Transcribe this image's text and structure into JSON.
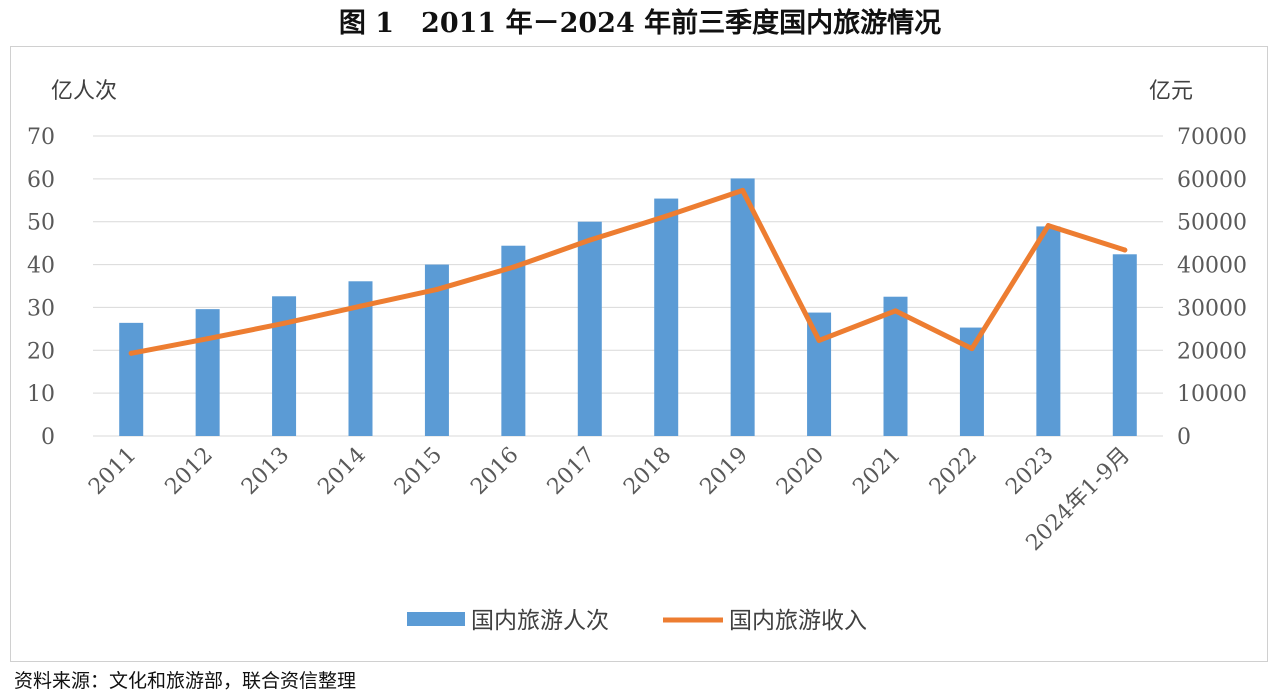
{
  "title": "图 1　2011 年－2024 年前三季度国内旅游情况",
  "source_note": "资料来源：文化和旅游部，联合资信整理",
  "colors": {
    "bar": "#5b9bd5",
    "line": "#ed7d31",
    "grid": "#d9d9d9",
    "text": "#595959"
  },
  "chart_data": {
    "type": "bar+line",
    "categories": [
      "2011",
      "2012",
      "2013",
      "2014",
      "2015",
      "2016",
      "2017",
      "2018",
      "2019",
      "2020",
      "2021",
      "2022",
      "2023",
      "2024年1-9月"
    ],
    "series": [
      {
        "name": "国内旅游人次",
        "type": "bar",
        "axis": "left",
        "values": [
          26.4,
          29.6,
          32.6,
          36.1,
          40.0,
          44.4,
          50.0,
          55.4,
          60.1,
          28.8,
          32.5,
          25.3,
          48.9,
          42.4
        ]
      },
      {
        "name": "国内旅游收入",
        "type": "line",
        "axis": "right",
        "values": [
          19300,
          22700,
          26300,
          30300,
          34200,
          39400,
          45700,
          51300,
          57300,
          22300,
          29200,
          20400,
          49100,
          43400
        ]
      }
    ],
    "y_left": {
      "label": "亿人次",
      "min": 0,
      "max": 70,
      "ticks": [
        0,
        10,
        20,
        30,
        40,
        50,
        60,
        70
      ]
    },
    "y_right": {
      "label": "亿元",
      "min": 0,
      "max": 70000,
      "ticks": [
        0,
        10000,
        20000,
        30000,
        40000,
        50000,
        60000,
        70000
      ]
    },
    "grid": true,
    "legend": "bottom"
  }
}
